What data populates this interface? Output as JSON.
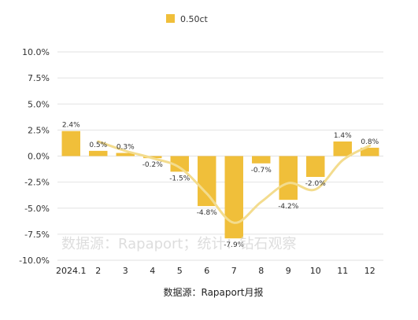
{
  "chart_data": {
    "type": "bar",
    "categories": [
      "2024.1",
      "2",
      "3",
      "4",
      "5",
      "6",
      "7",
      "8",
      "9",
      "10",
      "11",
      "12"
    ],
    "series": [
      {
        "name": "0.50ct",
        "values": [
          2.4,
          0.5,
          0.3,
          -0.2,
          -1.5,
          -4.8,
          -7.9,
          -0.7,
          -4.2,
          -2.0,
          1.4,
          0.8
        ],
        "labels": [
          "2.4%",
          "0.5%",
          "0.3%",
          "-0.2%",
          "-1.5%",
          "-4.8%",
          "-7.9%",
          "-0.7%",
          "-4.2%",
          "-2.0%",
          "1.4%",
          "0.8%"
        ]
      }
    ],
    "trend_line": {
      "values": [
        null,
        1.4,
        0.5,
        -0.2,
        -1.1,
        -3.6,
        -6.4,
        -4.4,
        -2.6,
        -3.2,
        -0.4,
        1.0
      ]
    },
    "ylim": [
      -10,
      10
    ],
    "ytick_labels": [
      "10.0%",
      "7.5%",
      "5.0%",
      "2.5%",
      "0.0%",
      "-2.5%",
      "-5.0%",
      "-7.5%",
      "-10.0%"
    ],
    "ytick_values": [
      10,
      7.5,
      5,
      2.5,
      0,
      -2.5,
      -5,
      -7.5,
      -10
    ],
    "grid": true,
    "legend_position": "top-center",
    "colors": {
      "bar": "#f0bf3a",
      "trend": "#f3dc8e",
      "grid": "#e2e2e2"
    }
  },
  "watermark": "数据源：Rapaport；统计：钻石观察",
  "source_note": "数据源：Rapaport月报"
}
